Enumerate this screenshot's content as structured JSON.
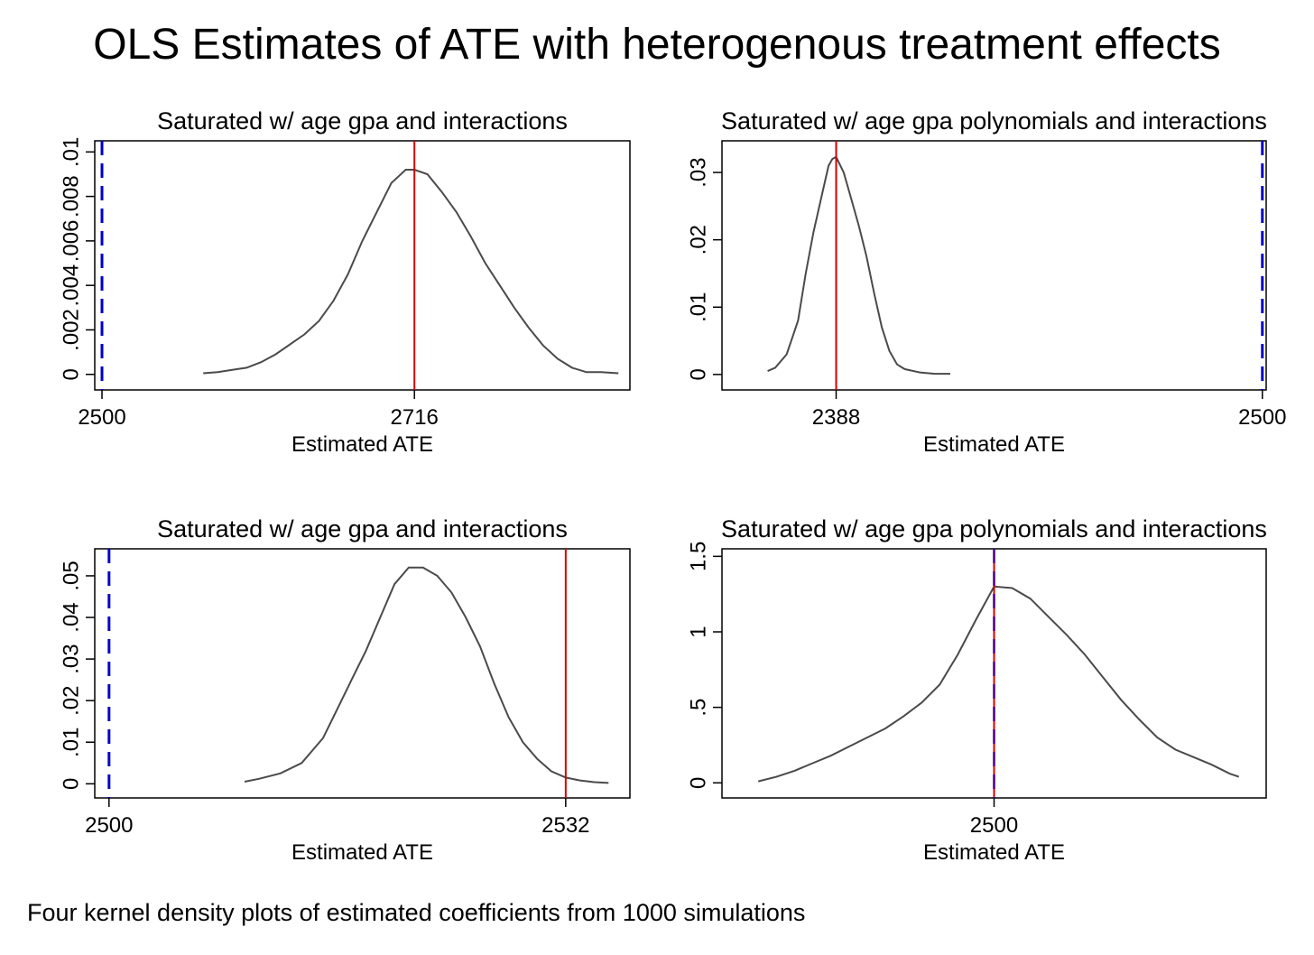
{
  "title": "OLS Estimates of ATE with heterogenous treatment effects",
  "caption": "Four kernel density plots of estimated coefficients from 1000 simulations",
  "colors": {
    "density_line": "#4a4a4a",
    "estimate_line": "#d40000",
    "true_value_line": "#0000cc",
    "axis": "#000000"
  },
  "chart_data": [
    {
      "type": "line",
      "title": "Saturated w/ age gpa and interactions",
      "xlabel": "Estimated ATE",
      "ylabel": "",
      "xlim": [
        2495,
        2865
      ],
      "ylim": [
        -0.0007,
        0.0105
      ],
      "xticks": [
        {
          "v": 2500,
          "label": "2500"
        },
        {
          "v": 2716,
          "label": "2716"
        }
      ],
      "yticks": [
        {
          "v": 0,
          "label": "0"
        },
        {
          "v": 0.002,
          "label": ".002"
        },
        {
          "v": 0.004,
          "label": ".004"
        },
        {
          "v": 0.006,
          "label": ".006"
        },
        {
          "v": 0.008,
          "label": ".008"
        },
        {
          "v": 0.01,
          "label": ".01"
        }
      ],
      "true_value": 2500,
      "estimate_mean": 2716,
      "series": [
        {
          "x": [
            2570,
            2580,
            2590,
            2600,
            2610,
            2620,
            2630,
            2640,
            2650,
            2660,
            2670,
            2680,
            2690,
            2700,
            2710,
            2716,
            2725,
            2735,
            2745,
            2755,
            2765,
            2775,
            2785,
            2795,
            2805,
            2815,
            2825,
            2835,
            2845,
            2857
          ],
          "y": [
            5e-05,
            0.0001,
            0.0002,
            0.0003,
            0.00055,
            0.0009,
            0.00135,
            0.0018,
            0.0024,
            0.0033,
            0.0045,
            0.006,
            0.0073,
            0.0086,
            0.0092,
            0.0092,
            0.009,
            0.0082,
            0.0073,
            0.0062,
            0.005,
            0.004,
            0.003,
            0.0021,
            0.0013,
            0.0007,
            0.0003,
            0.0001,
            0.0001,
            5e-05
          ]
        }
      ]
    },
    {
      "type": "line",
      "title": "Saturated w/ age gpa polynomials and interactions",
      "xlabel": "Estimated ATE",
      "ylabel": "",
      "xlim": [
        2358,
        2501
      ],
      "ylim": [
        -0.0023,
        0.0347
      ],
      "xticks": [
        {
          "v": 2388,
          "label": "2388"
        },
        {
          "v": 2500,
          "label": "2500"
        }
      ],
      "yticks": [
        {
          "v": 0,
          "label": "0"
        },
        {
          "v": 0.01,
          "label": ".01"
        },
        {
          "v": 0.02,
          "label": ".02"
        },
        {
          "v": 0.03,
          "label": ".03"
        }
      ],
      "true_value": 2500,
      "estimate_mean": 2388,
      "series": [
        {
          "x": [
            2370,
            2372,
            2375,
            2378,
            2380,
            2382,
            2384,
            2386,
            2387,
            2388,
            2390,
            2392,
            2394,
            2396,
            2398,
            2400,
            2402,
            2404,
            2406,
            2410,
            2414,
            2418
          ],
          "y": [
            0.0005,
            0.001,
            0.003,
            0.008,
            0.015,
            0.021,
            0.026,
            0.031,
            0.032,
            0.0323,
            0.03,
            0.026,
            0.022,
            0.0175,
            0.012,
            0.007,
            0.0035,
            0.0015,
            0.0008,
            0.0003,
            0.0001,
            0.0001
          ]
        }
      ]
    },
    {
      "type": "line",
      "title": "Saturated w/ age gpa and interactions",
      "xlabel": "Estimated ATE",
      "ylabel": "",
      "xlim": [
        2499,
        2536.5
      ],
      "ylim": [
        -0.0034,
        0.0565
      ],
      "xticks": [
        {
          "v": 2500,
          "label": "2500"
        },
        {
          "v": 2532,
          "label": "2532"
        }
      ],
      "yticks": [
        {
          "v": 0,
          "label": "0"
        },
        {
          "v": 0.01,
          "label": ".01"
        },
        {
          "v": 0.02,
          "label": ".02"
        },
        {
          "v": 0.03,
          "label": ".03"
        },
        {
          "v": 0.04,
          "label": ".04"
        },
        {
          "v": 0.05,
          "label": ".05"
        }
      ],
      "true_value": 2500,
      "estimate_mean": 2532,
      "series": [
        {
          "x": [
            2509.5,
            2510.5,
            2512,
            2513.5,
            2515,
            2516,
            2517,
            2518,
            2519,
            2520,
            2521,
            2522,
            2523,
            2524,
            2525,
            2526,
            2527,
            2528,
            2529,
            2530,
            2531,
            2532,
            2533,
            2534,
            2535
          ],
          "y": [
            0.0005,
            0.0012,
            0.0025,
            0.005,
            0.011,
            0.018,
            0.025,
            0.032,
            0.04,
            0.048,
            0.052,
            0.052,
            0.05,
            0.046,
            0.04,
            0.033,
            0.024,
            0.016,
            0.01,
            0.006,
            0.003,
            0.0015,
            0.0008,
            0.0004,
            0.0002
          ]
        }
      ]
    },
    {
      "type": "line",
      "title": "Saturated w/ age gpa polynomials and interactions",
      "xlabel": "Estimated ATE",
      "ylabel": "",
      "xlim": [
        2498.5,
        2501.5
      ],
      "ylim": [
        -0.1,
        1.55
      ],
      "xticks": [
        {
          "v": 2500,
          "label": "2500"
        }
      ],
      "yticks": [
        {
          "v": 0,
          "label": "0"
        },
        {
          "v": 0.5,
          "label": ".5"
        },
        {
          "v": 1,
          "label": "1"
        },
        {
          "v": 1.5,
          "label": "1.5"
        }
      ],
      "true_value": 2500,
      "estimate_mean": 2500,
      "series": [
        {
          "x": [
            2498.7,
            2498.8,
            2498.9,
            2499.0,
            2499.1,
            2499.2,
            2499.3,
            2499.4,
            2499.5,
            2499.6,
            2499.7,
            2499.8,
            2499.9,
            2500.0,
            2500.1,
            2500.2,
            2500.3,
            2500.4,
            2500.5,
            2500.6,
            2500.7,
            2500.8,
            2500.9,
            2501.0,
            2501.1,
            2501.2,
            2501.3,
            2501.35
          ],
          "y": [
            0.01,
            0.04,
            0.08,
            0.13,
            0.18,
            0.24,
            0.3,
            0.36,
            0.44,
            0.53,
            0.65,
            0.85,
            1.08,
            1.3,
            1.29,
            1.22,
            1.1,
            0.98,
            0.85,
            0.7,
            0.55,
            0.42,
            0.3,
            0.22,
            0.17,
            0.12,
            0.06,
            0.04
          ]
        }
      ]
    }
  ]
}
